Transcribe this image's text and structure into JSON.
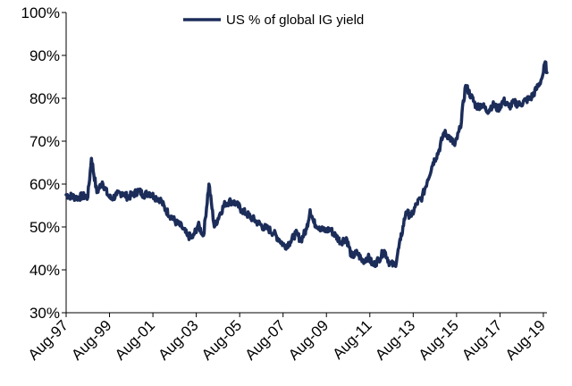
{
  "chart_data": {
    "type": "line",
    "title": "",
    "xlabel": "",
    "ylabel": "",
    "ylim": [
      30,
      100
    ],
    "yticks": [
      "30%",
      "40%",
      "50%",
      "60%",
      "70%",
      "80%",
      "90%",
      "100%"
    ],
    "xticks": [
      "Aug-97",
      "Aug-99",
      "Aug-01",
      "Aug-03",
      "Aug-05",
      "Aug-07",
      "Aug-09",
      "Aug-11",
      "Aug-13",
      "Aug-15",
      "Aug-17",
      "Aug-19"
    ],
    "xlim": [
      "1997-08",
      "2019-10"
    ],
    "grid": false,
    "legend_position": "top-center",
    "series": [
      {
        "name": "US % of global IG yield",
        "color": "#1c2d5a",
        "x": [
          "1997-08",
          "1998-02",
          "1998-05",
          "1998-08",
          "1998-10",
          "1999-01",
          "1999-04",
          "1999-07",
          "1999-09",
          "1999-12",
          "2000-03",
          "2000-06",
          "2000-09",
          "2000-12",
          "2001-03",
          "2001-06",
          "2001-09",
          "2001-12",
          "2002-03",
          "2002-06",
          "2002-09",
          "2002-12",
          "2003-03",
          "2003-06",
          "2003-09",
          "2003-12",
          "2004-03",
          "2004-06",
          "2004-09",
          "2004-12",
          "2005-03",
          "2005-06",
          "2005-09",
          "2005-12",
          "2006-03",
          "2006-06",
          "2006-09",
          "2006-12",
          "2007-03",
          "2007-06",
          "2007-09",
          "2007-12",
          "2008-03",
          "2008-06",
          "2008-09",
          "2008-11",
          "2009-01",
          "2009-04",
          "2009-07",
          "2009-10",
          "2010-01",
          "2010-04",
          "2010-07",
          "2010-10",
          "2011-01",
          "2011-04",
          "2011-07",
          "2011-10",
          "2012-01",
          "2012-04",
          "2012-07",
          "2012-10",
          "2013-01",
          "2013-04",
          "2013-07",
          "2013-10",
          "2014-01",
          "2014-04",
          "2014-07",
          "2014-10",
          "2015-01",
          "2015-04",
          "2015-07",
          "2015-10",
          "2016-01",
          "2016-04",
          "2016-07",
          "2016-10",
          "2017-01",
          "2017-04",
          "2017-07",
          "2017-10",
          "2018-01",
          "2018-04",
          "2018-07",
          "2018-10",
          "2019-01",
          "2019-04",
          "2019-07",
          "2019-08",
          "2019-09",
          "2019-10"
        ],
        "values": [
          57.5,
          56.8,
          57.2,
          57.0,
          66.0,
          58.0,
          60.5,
          57.5,
          56.5,
          57.5,
          58.0,
          57.0,
          57.5,
          58.5,
          57.5,
          58.0,
          57.0,
          56.5,
          54.0,
          52.5,
          51.0,
          50.0,
          48.0,
          47.5,
          50.5,
          48.0,
          60.0,
          50.0,
          53.0,
          55.5,
          56.0,
          55.5,
          54.0,
          53.0,
          52.0,
          51.0,
          50.0,
          49.5,
          48.5,
          47.0,
          45.5,
          46.5,
          48.5,
          47.0,
          49.5,
          54.0,
          51.0,
          50.0,
          49.0,
          49.5,
          48.0,
          46.5,
          47.5,
          43.0,
          44.0,
          42.0,
          43.0,
          41.0,
          42.5,
          44.5,
          41.5,
          41.0,
          47.0,
          53.5,
          52.5,
          55.5,
          57.0,
          61.0,
          65.0,
          67.5,
          72.0,
          71.0,
          69.0,
          73.0,
          83.0,
          80.5,
          78.0,
          78.5,
          77.0,
          78.5,
          77.5,
          79.5,
          78.0,
          79.0,
          78.5,
          79.5,
          80.0,
          82.0,
          84.5,
          86.0,
          88.5,
          86.0
        ]
      }
    ]
  }
}
